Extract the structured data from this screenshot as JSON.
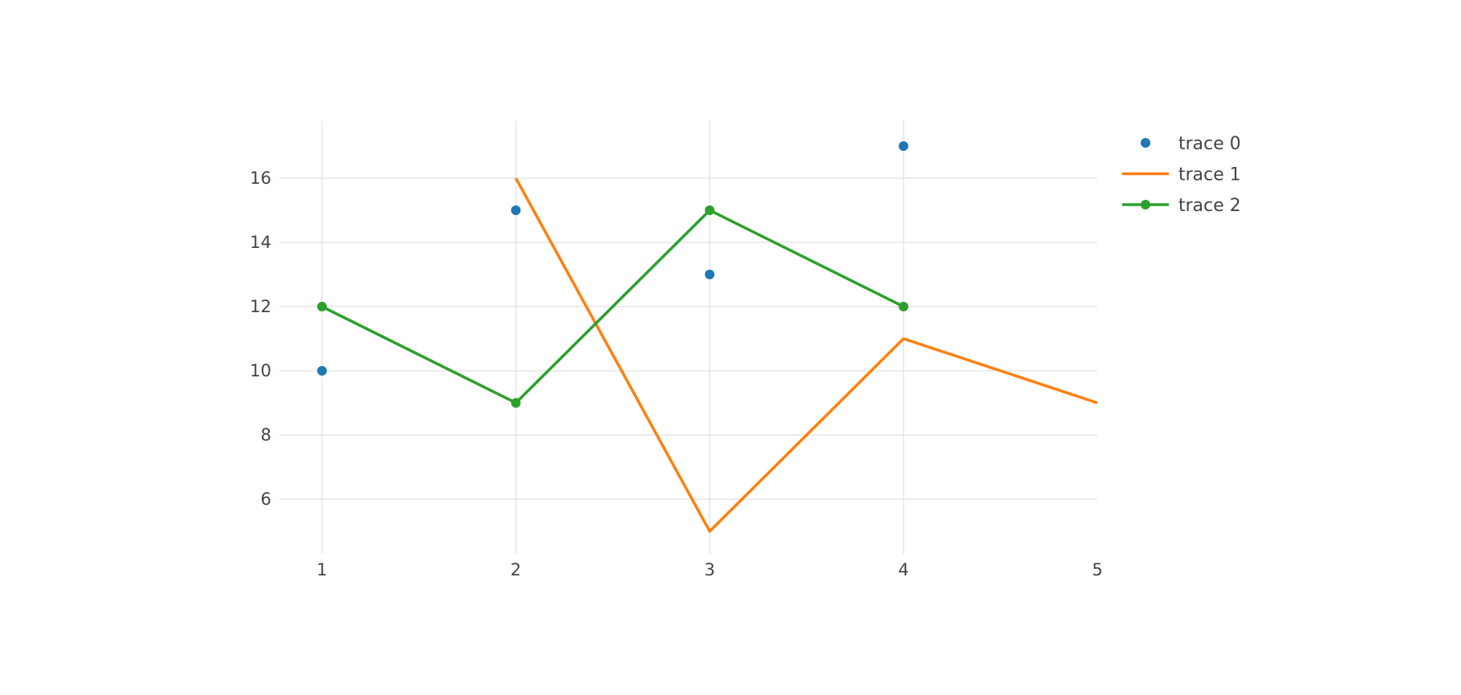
{
  "chart_data": {
    "type": "line",
    "title": "",
    "xlabel": "",
    "ylabel": "",
    "xlim": [
      0.78,
      5
    ],
    "ylim": [
      4.3,
      17.8
    ],
    "x_ticks": [
      1,
      2,
      3,
      4,
      5
    ],
    "y_ticks": [
      6,
      8,
      10,
      12,
      14,
      16
    ],
    "grid": true,
    "legend_position": "top-right",
    "series": [
      {
        "name": "trace 0",
        "mode": "markers",
        "color": "#1f77b4",
        "x": [
          1,
          2,
          3,
          4
        ],
        "y": [
          10,
          15,
          13,
          17
        ]
      },
      {
        "name": "trace 1",
        "mode": "lines",
        "color": "#ff7f0e",
        "x": [
          2,
          3,
          4,
          5
        ],
        "y": [
          16,
          5,
          11,
          9
        ]
      },
      {
        "name": "trace 2",
        "mode": "lines+markers",
        "color": "#2ca02c",
        "x": [
          1,
          2,
          3,
          4
        ],
        "y": [
          12,
          9,
          15,
          12
        ]
      }
    ]
  }
}
